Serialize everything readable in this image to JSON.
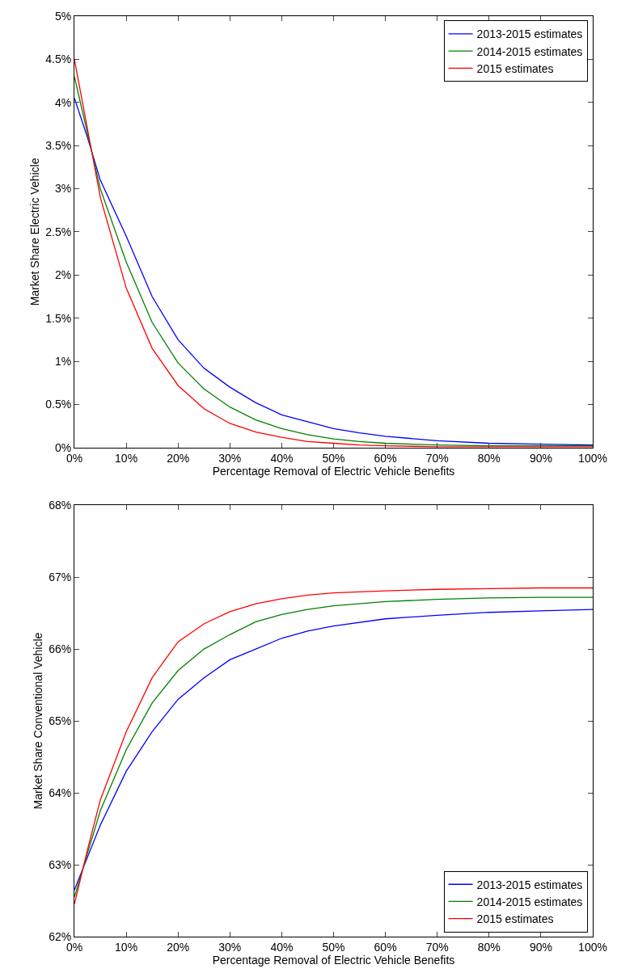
{
  "chart_data": [
    {
      "type": "line",
      "xlabel": "Percentage Removal of Electric Vehicle Benefits",
      "ylabel": "Market Share Electric Vehicle",
      "x": [
        0,
        2.5,
        5,
        10,
        15,
        20,
        25,
        30,
        35,
        40,
        45,
        50,
        55,
        60,
        70,
        80,
        90,
        100
      ],
      "series": [
        {
          "name": "2013-2015 estimates",
          "color": "#0000ff",
          "values": [
            4.05,
            3.6,
            3.1,
            2.45,
            1.75,
            1.25,
            0.92,
            0.7,
            0.52,
            0.38,
            0.3,
            0.22,
            0.17,
            0.13,
            0.08,
            0.05,
            0.04,
            0.03
          ]
        },
        {
          "name": "2014-2015 estimates",
          "color": "#008000",
          "values": [
            4.3,
            3.65,
            3.0,
            2.15,
            1.45,
            0.98,
            0.68,
            0.47,
            0.32,
            0.22,
            0.15,
            0.1,
            0.07,
            0.05,
            0.03,
            0.02,
            0.02,
            0.02
          ]
        },
        {
          "name": "2015 estimates",
          "color": "#ff0000",
          "values": [
            4.5,
            3.7,
            2.9,
            1.85,
            1.15,
            0.72,
            0.45,
            0.28,
            0.18,
            0.12,
            0.07,
            0.05,
            0.03,
            0.02,
            0.01,
            0.01,
            0.01,
            0.01
          ]
        }
      ],
      "xlim": [
        0,
        100
      ],
      "xticks": [
        {
          "value": 0,
          "label": "0%"
        },
        {
          "value": 10,
          "label": "10%"
        },
        {
          "value": 20,
          "label": "20%"
        },
        {
          "value": 30,
          "label": "30%"
        },
        {
          "value": 40,
          "label": "40%"
        },
        {
          "value": 50,
          "label": "50%"
        },
        {
          "value": 60,
          "label": "60%"
        },
        {
          "value": 70,
          "label": "70%"
        },
        {
          "value": 80,
          "label": "80%"
        },
        {
          "value": 90,
          "label": "90%"
        },
        {
          "value": 100,
          "label": "100%"
        }
      ],
      "ylim": [
        0,
        5
      ],
      "yticks": [
        {
          "value": 0,
          "label": "0%"
        },
        {
          "value": 0.5,
          "label": "0.5%"
        },
        {
          "value": 1,
          "label": "1%"
        },
        {
          "value": 1.5,
          "label": "1.5%"
        },
        {
          "value": 2,
          "label": "2%"
        },
        {
          "value": 2.5,
          "label": "2.5%"
        },
        {
          "value": 3,
          "label": "3%"
        },
        {
          "value": 3.5,
          "label": "3.5%"
        },
        {
          "value": 4,
          "label": "4%"
        },
        {
          "value": 4.5,
          "label": "4.5%"
        },
        {
          "value": 5,
          "label": "5%"
        }
      ],
      "legend": "top right",
      "line_style": "solid"
    },
    {
      "type": "line",
      "xlabel": "Percentage Removal of Electric Vehicle Benefits",
      "ylabel": "Market Share Conventional Vehicle",
      "x": [
        0,
        2.5,
        5,
        10,
        15,
        20,
        25,
        30,
        35,
        40,
        45,
        50,
        60,
        70,
        80,
        90,
        100
      ],
      "series": [
        {
          "name": "2013-2015 estimates",
          "color": "#0000ff",
          "values": [
            62.65,
            63.1,
            63.55,
            64.3,
            64.85,
            65.3,
            65.6,
            65.85,
            66.0,
            66.15,
            66.25,
            66.32,
            66.42,
            66.47,
            66.51,
            66.53,
            66.55
          ]
        },
        {
          "name": "2014-2015 estimates",
          "color": "#008000",
          "values": [
            62.55,
            63.15,
            63.75,
            64.6,
            65.25,
            65.7,
            66.0,
            66.2,
            66.38,
            66.48,
            66.55,
            66.6,
            66.66,
            66.69,
            66.71,
            66.72,
            66.72
          ]
        },
        {
          "name": "2015 estimates",
          "color": "#ff0000",
          "values": [
            62.45,
            63.2,
            63.9,
            64.85,
            65.6,
            66.1,
            66.35,
            66.52,
            66.63,
            66.7,
            66.75,
            66.78,
            66.81,
            66.83,
            66.84,
            66.85,
            66.85
          ]
        }
      ],
      "xlim": [
        0,
        100
      ],
      "xticks": [
        {
          "value": 0,
          "label": "0%"
        },
        {
          "value": 10,
          "label": "10%"
        },
        {
          "value": 20,
          "label": "20%"
        },
        {
          "value": 30,
          "label": "30%"
        },
        {
          "value": 40,
          "label": "40%"
        },
        {
          "value": 50,
          "label": "50%"
        },
        {
          "value": 60,
          "label": "60%"
        },
        {
          "value": 70,
          "label": "70%"
        },
        {
          "value": 80,
          "label": "80%"
        },
        {
          "value": 90,
          "label": "90%"
        },
        {
          "value": 100,
          "label": "100%"
        }
      ],
      "ylim": [
        62,
        68
      ],
      "yticks": [
        {
          "value": 62,
          "label": "62%"
        },
        {
          "value": 63,
          "label": "63%"
        },
        {
          "value": 64,
          "label": "64%"
        },
        {
          "value": 65,
          "label": "65%"
        },
        {
          "value": 66,
          "label": "66%"
        },
        {
          "value": 67,
          "label": "67%"
        },
        {
          "value": 68,
          "label": "68%"
        }
      ],
      "legend": "bottom right",
      "line_style": "solid"
    }
  ]
}
